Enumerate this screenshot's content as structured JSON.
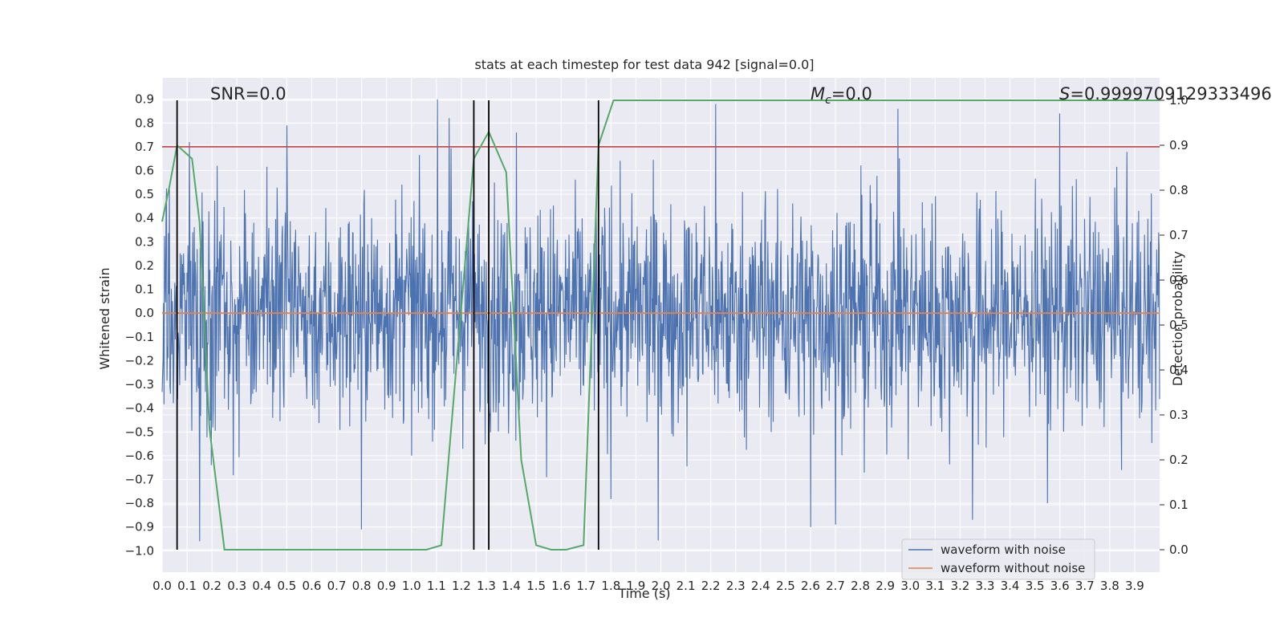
{
  "chart_data": {
    "type": "line",
    "title": "stats at each timestep for test data 942 [signal=0.0]",
    "xlabel": "Time (s)",
    "ylabel": "Whitened strain",
    "y2label": "Detection probability",
    "xlim": [
      0.0,
      4.0
    ],
    "ylim": [
      -1.09,
      0.99
    ],
    "y2lim": [
      -0.05,
      1.05
    ],
    "xticks": [
      "0.0",
      "0.1",
      "0.2",
      "0.3",
      "0.4",
      "0.5",
      "0.6",
      "0.7",
      "0.8",
      "0.9",
      "1.0",
      "1.1",
      "1.2",
      "1.3",
      "1.4",
      "1.5",
      "1.6",
      "1.7",
      "1.8",
      "1.9",
      "2.0",
      "2.1",
      "2.2",
      "2.3",
      "2.4",
      "2.5",
      "2.6",
      "2.7",
      "2.8",
      "2.9",
      "3.0",
      "3.1",
      "3.2",
      "3.3",
      "3.4",
      "3.5",
      "3.6",
      "3.7",
      "3.8",
      "3.9"
    ],
    "yticks": [
      "0.9",
      "0.8",
      "0.7",
      "0.6",
      "0.5",
      "0.4",
      "0.3",
      "0.2",
      "0.1",
      "0.0",
      "−0.1",
      "−0.2",
      "−0.3",
      "−0.4",
      "−0.5",
      "−0.6",
      "−0.7",
      "−0.8",
      "−0.9",
      "−1.0"
    ],
    "y2ticks": [
      "1.0",
      "0.9",
      "0.8",
      "0.7",
      "0.6",
      "0.5",
      "0.4",
      "0.3",
      "0.2",
      "0.1",
      "0.0"
    ],
    "grid": true,
    "legend": {
      "placement": "lower-right",
      "entries": [
        {
          "label": "waveform with noise",
          "color": "#4c72b0"
        },
        {
          "label": "waveform without noise",
          "color": "#dd8452"
        }
      ]
    },
    "annotations": {
      "snr": "SNR=0.0",
      "mc_symbol": "M",
      "mc_sub": "c",
      "mc_value": "=0.0",
      "s_symbol": "S",
      "s_value": "=0.9999709129333496"
    },
    "noisy_waveform": {
      "name": "waveform with noise",
      "color": "#4c72b0",
      "sample_rate_hz": 1024,
      "amplitude_envelope": 0.42,
      "notable_peaks": [
        {
          "x": 0.11,
          "y": 0.72
        },
        {
          "x": 0.22,
          "y": 0.62
        },
        {
          "x": 0.5,
          "y": 0.79
        },
        {
          "x": 1.15,
          "y": 0.82
        },
        {
          "x": 1.42,
          "y": 0.76
        },
        {
          "x": 2.22,
          "y": 0.88
        },
        {
          "x": 2.95,
          "y": 0.86
        },
        {
          "x": 3.6,
          "y": 0.84
        },
        {
          "x": 0.15,
          "y": -0.96
        },
        {
          "x": 0.8,
          "y": -0.91
        },
        {
          "x": 2.6,
          "y": -0.9
        },
        {
          "x": 2.7,
          "y": -0.89
        },
        {
          "x": 3.25,
          "y": -0.87
        },
        {
          "x": 3.55,
          "y": -0.8
        }
      ]
    },
    "clean_waveform": {
      "name": "waveform without noise",
      "color": "#dd8452",
      "y": 0.0
    },
    "threshold": {
      "color": "#c44e52",
      "y": 0.7
    },
    "detection_probability": {
      "color": "#55a868",
      "x": [
        0.0,
        0.03,
        0.06,
        0.12,
        0.15,
        0.19,
        0.25,
        0.31,
        0.5,
        0.8,
        1.06,
        1.12,
        1.25,
        1.31,
        1.38,
        1.44,
        1.5,
        1.56,
        1.62,
        1.69,
        1.75,
        1.81,
        2.0,
        3.0,
        4.0
      ],
      "y": [
        0.73,
        0.81,
        0.9,
        0.87,
        0.73,
        0.27,
        0.0,
        0.0,
        0.0,
        0.0,
        0.0,
        0.01,
        0.87,
        0.93,
        0.84,
        0.2,
        0.01,
        0.0,
        0.0,
        0.01,
        0.9,
        1.0,
        1.0,
        1.0,
        1.0
      ]
    },
    "detection_markers": {
      "color": "#000000",
      "x": [
        0.06,
        1.25,
        1.31,
        1.75
      ]
    }
  }
}
